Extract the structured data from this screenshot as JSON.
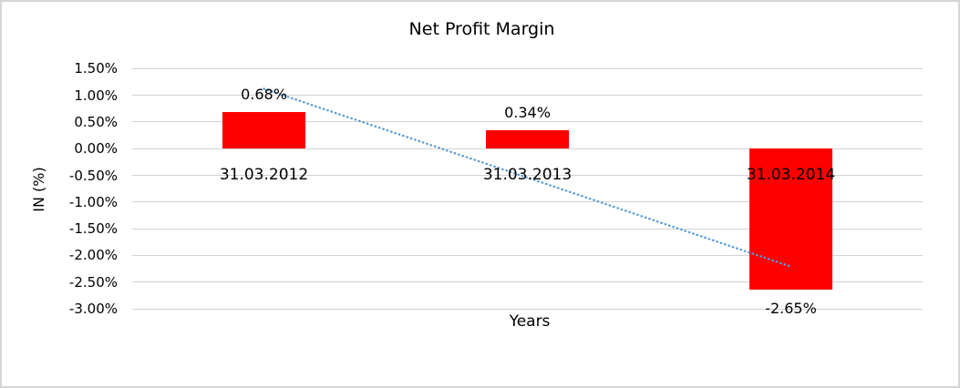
{
  "window": {
    "background_color": "#ffffff",
    "border_color": "#d5d5d5"
  },
  "chart_data": {
    "type": "bar",
    "title": "Net Profit Margin",
    "xlabel": "Years",
    "ylabel": "IN (%)",
    "categories": [
      "31.03.2012",
      "31.03.2013",
      "31.03.2014"
    ],
    "series": [
      {
        "name": "Net Profit Margin",
        "values": [
          0.68,
          0.34,
          -2.65
        ]
      }
    ],
    "data_labels": [
      "0.68%",
      "0.34%",
      "-2.65%"
    ],
    "ylim": [
      -3.0,
      1.5
    ],
    "ytick_step": 0.5,
    "ytick_labels": [
      "1.50%",
      "1.00%",
      "0.50%",
      "0.00%",
      "-0.50%",
      "-1.00%",
      "-1.50%",
      "-2.00%",
      "-2.50%",
      "-3.00%"
    ],
    "grid": true,
    "legend": "none",
    "bar_color": "#fe0000",
    "gridline_color": "#d2d2d2",
    "trendline": {
      "type": "linear",
      "style": "dotted",
      "color": "#5b9bd5",
      "endpoints_pct": [
        1.12,
        -2.21
      ]
    }
  }
}
